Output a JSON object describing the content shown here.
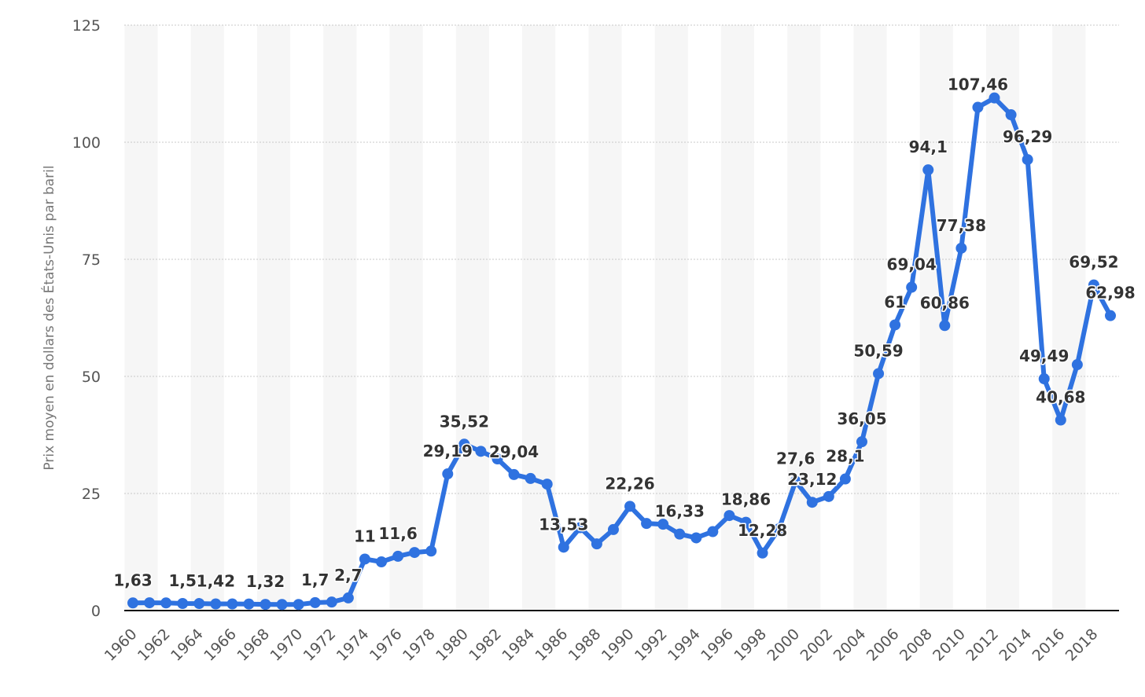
{
  "chart_data": {
    "type": "line",
    "title": "",
    "xlabel": "",
    "ylabel": "Prix moyen en dollars des États-Unis par baril",
    "ylim": [
      0,
      125
    ],
    "y_ticks": [
      "0",
      "25",
      "50",
      "75",
      "100",
      "125"
    ],
    "x_tick_labels": [
      "1960",
      "1962",
      "1964",
      "1966",
      "1968",
      "1970",
      "1972",
      "1974",
      "1976",
      "1978",
      "1980",
      "1982",
      "1984",
      "1986",
      "1988",
      "1990",
      "1992",
      "1994",
      "1996",
      "1998",
      "2000",
      "2002",
      "2004",
      "2006",
      "2008",
      "2010",
      "2012",
      "2014",
      "2016",
      "2018"
    ],
    "grid": true,
    "legend": "none",
    "series_color": "#2f72e0",
    "band_color": "#f6f6f6",
    "x": [
      1960,
      1961,
      1962,
      1963,
      1964,
      1965,
      1966,
      1967,
      1968,
      1969,
      1970,
      1971,
      1972,
      1973,
      1974,
      1975,
      1976,
      1977,
      1978,
      1979,
      1980,
      1981,
      1982,
      1983,
      1984,
      1985,
      1986,
      1987,
      1988,
      1989,
      1990,
      1991,
      1992,
      1993,
      1994,
      1995,
      1996,
      1997,
      1998,
      1999,
      2000,
      2001,
      2002,
      2003,
      2004,
      2005,
      2006,
      2007,
      2008,
      2009,
      2010,
      2011,
      2012,
      2013,
      2014,
      2015,
      2016,
      2017,
      2018,
      2019
    ],
    "series": [
      {
        "values": [
          1.63,
          1.66,
          1.63,
          1.51,
          1.5,
          1.42,
          1.42,
          1.4,
          1.32,
          1.3,
          1.3,
          1.7,
          1.82,
          2.7,
          11.0,
          10.4,
          11.6,
          12.4,
          12.7,
          29.19,
          35.52,
          34.0,
          32.38,
          29.04,
          28.2,
          27.0,
          13.53,
          17.7,
          14.24,
          17.3,
          22.26,
          18.6,
          18.43,
          16.33,
          15.53,
          16.86,
          20.29,
          18.86,
          12.28,
          17.44,
          27.6,
          23.12,
          24.36,
          28.1,
          36.05,
          50.59,
          61.0,
          69.04,
          94.1,
          60.86,
          77.38,
          107.46,
          109.45,
          105.87,
          96.29,
          49.49,
          40.68,
          52.51,
          69.52,
          62.98
        ]
      }
    ],
    "data_labels": [
      {
        "x": 1960,
        "text": "1,63"
      },
      {
        "x": 1963,
        "text": "1,5"
      },
      {
        "x": 1965,
        "text": "1,42"
      },
      {
        "x": 1968,
        "text": "1,32"
      },
      {
        "x": 1971,
        "text": "1,7"
      },
      {
        "x": 1973,
        "text": "2,7"
      },
      {
        "x": 1974,
        "text": "11"
      },
      {
        "x": 1976,
        "text": "11,6"
      },
      {
        "x": 1979,
        "text": "29,19"
      },
      {
        "x": 1980,
        "text": "35,52"
      },
      {
        "x": 1983,
        "text": "29,04"
      },
      {
        "x": 1986,
        "text": "13,53"
      },
      {
        "x": 1990,
        "text": "22,26"
      },
      {
        "x": 1993,
        "text": "16,33"
      },
      {
        "x": 1997,
        "text": "18,86"
      },
      {
        "x": 1998,
        "text": "12,28"
      },
      {
        "x": 2000,
        "text": "27,6"
      },
      {
        "x": 2001,
        "text": "23,12"
      },
      {
        "x": 2003,
        "text": "28,1"
      },
      {
        "x": 2004,
        "text": "36,05"
      },
      {
        "x": 2005,
        "text": "50,59"
      },
      {
        "x": 2006,
        "text": "61"
      },
      {
        "x": 2007,
        "text": "69,04"
      },
      {
        "x": 2008,
        "text": "94,1"
      },
      {
        "x": 2009,
        "text": "60,86"
      },
      {
        "x": 2010,
        "text": "77,38"
      },
      {
        "x": 2011,
        "text": "107,46"
      },
      {
        "x": 2014,
        "text": "96,29"
      },
      {
        "x": 2015,
        "text": "49,49"
      },
      {
        "x": 2016,
        "text": "40,68"
      },
      {
        "x": 2018,
        "text": "69,52"
      },
      {
        "x": 2019,
        "text": "62,98"
      }
    ]
  }
}
